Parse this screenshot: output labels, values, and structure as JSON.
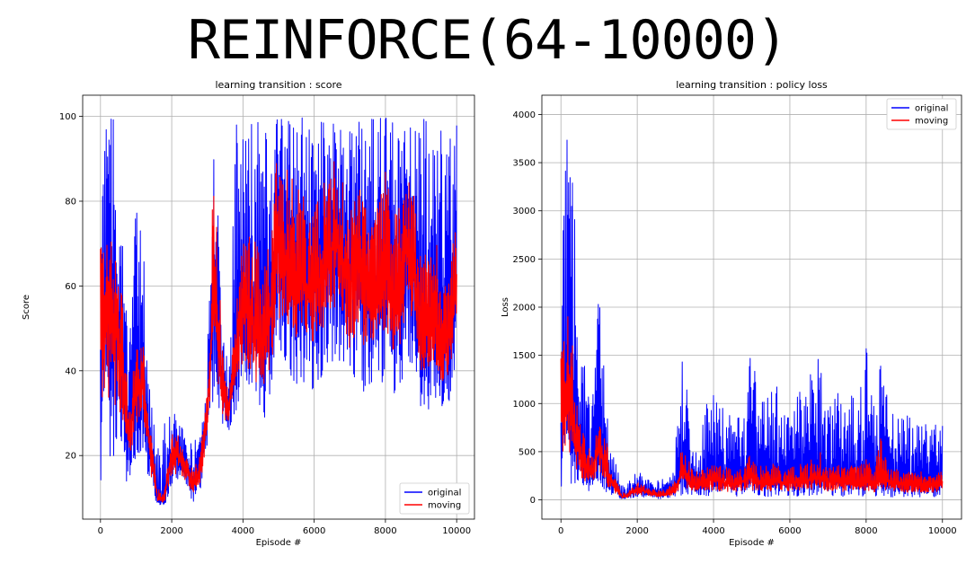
{
  "page": {
    "title": "REINFORCE(64-10000)"
  },
  "colors": {
    "original": "#0000ff",
    "moving": "#ff0000",
    "grid": "#b0b0b0",
    "axis": "#000000"
  },
  "chart_data": [
    {
      "type": "line",
      "title": "learning transition : score",
      "xlabel": "Episode #",
      "ylabel": "Score",
      "xlim": [
        -500,
        10500
      ],
      "ylim": [
        5,
        105
      ],
      "xticks": [
        0,
        2000,
        4000,
        6000,
        8000,
        10000
      ],
      "yticks": [
        20,
        40,
        60,
        80,
        100
      ],
      "grid": true,
      "legend": {
        "position": "bottom-right",
        "entries": [
          "original",
          "moving"
        ]
      },
      "series": [
        {
          "name": "original",
          "x": [
            0,
            200,
            400,
            600,
            800,
            1000,
            1200,
            1400,
            1600,
            1800,
            2000,
            2200,
            2400,
            2600,
            2800,
            3000,
            3200,
            3400,
            3600,
            3800,
            4000,
            4200,
            4400,
            4600,
            4800,
            5000,
            5200,
            5400,
            5600,
            5800,
            6000,
            6200,
            6400,
            6600,
            6800,
            7000,
            7200,
            7400,
            7600,
            7800,
            8000,
            8200,
            8400,
            8600,
            8800,
            9000,
            9200,
            9400,
            9600,
            9800,
            10000
          ],
          "y": [
            45,
            60,
            55,
            40,
            25,
            35,
            38,
            20,
            10,
            9,
            20,
            21,
            17,
            13,
            18,
            30,
            60,
            38,
            30,
            45,
            58,
            55,
            50,
            45,
            55,
            72,
            68,
            63,
            65,
            60,
            60,
            64,
            70,
            72,
            67,
            62,
            68,
            62,
            58,
            62,
            70,
            60,
            62,
            72,
            65,
            50,
            48,
            55,
            42,
            50,
            62
          ],
          "band_low": [
            11,
            22,
            16,
            20,
            10,
            18,
            22,
            12,
            8,
            8,
            12,
            14,
            12,
            9,
            11,
            22,
            35,
            26,
            25,
            30,
            37,
            30,
            26,
            28,
            33,
            40,
            40,
            38,
            36,
            35,
            33,
            38,
            40,
            42,
            40,
            32,
            40,
            34,
            34,
            38,
            36,
            34,
            32,
            45,
            38,
            31,
            30,
            34,
            28,
            33,
            40
          ],
          "band_high": [
            100,
            100,
            100,
            80,
            45,
            82,
            70,
            35,
            22,
            28,
            30,
            30,
            25,
            22,
            28,
            45,
            100,
            60,
            45,
            100,
            100,
            100,
            100,
            100,
            100,
            100,
            100,
            100,
            100,
            100,
            100,
            100,
            100,
            100,
            100,
            100,
            100,
            100,
            100,
            100,
            100,
            100,
            100,
            100,
            100,
            100,
            100,
            100,
            100,
            100,
            100
          ]
        },
        {
          "name": "moving",
          "x": [
            0,
            200,
            400,
            600,
            800,
            1000,
            1200,
            1400,
            1600,
            1800,
            2000,
            2200,
            2400,
            2600,
            2800,
            3000,
            3200,
            3400,
            3600,
            3800,
            4000,
            4200,
            4400,
            4600,
            4800,
            5000,
            5200,
            5400,
            5600,
            5800,
            6000,
            6200,
            6400,
            6600,
            6800,
            7000,
            7200,
            7400,
            7600,
            7800,
            8000,
            8200,
            8400,
            8600,
            8800,
            9000,
            9200,
            9400,
            9600,
            9800,
            10000
          ],
          "y": [
            48,
            58,
            50,
            42,
            24,
            35,
            37,
            21,
            10,
            10,
            20,
            20,
            17,
            13,
            17,
            30,
            58,
            38,
            30,
            45,
            55,
            52,
            48,
            46,
            55,
            70,
            66,
            62,
            63,
            58,
            60,
            62,
            68,
            70,
            66,
            60,
            66,
            60,
            57,
            60,
            68,
            58,
            60,
            70,
            63,
            50,
            48,
            53,
            44,
            50,
            60
          ],
          "band_low": [
            30,
            33,
            30,
            30,
            18,
            27,
            30,
            16,
            9,
            9,
            15,
            16,
            14,
            11,
            13,
            25,
            45,
            30,
            27,
            38,
            42,
            40,
            36,
            36,
            42,
            52,
            52,
            48,
            48,
            46,
            46,
            48,
            52,
            54,
            52,
            45,
            50,
            45,
            44,
            48,
            50,
            45,
            44,
            55,
            48,
            40,
            40,
            42,
            36,
            40,
            48
          ],
          "band_high": [
            70,
            75,
            70,
            60,
            32,
            48,
            46,
            27,
            12,
            12,
            25,
            25,
            20,
            17,
            22,
            36,
            96,
            47,
            34,
            55,
            75,
            72,
            70,
            65,
            75,
            95,
            88,
            85,
            85,
            78,
            80,
            82,
            88,
            90,
            85,
            80,
            85,
            80,
            75,
            80,
            90,
            78,
            80,
            88,
            82,
            70,
            66,
            72,
            60,
            68,
            75
          ]
        }
      ]
    },
    {
      "type": "line",
      "title": "learning transition : policy loss",
      "xlabel": "Episode #",
      "ylabel": "Loss",
      "xlim": [
        -500,
        10500
      ],
      "ylim": [
        -200,
        4200
      ],
      "xticks": [
        0,
        2000,
        4000,
        6000,
        8000,
        10000
      ],
      "yticks": [
        0,
        500,
        1000,
        1500,
        2000,
        2500,
        3000,
        3500,
        4000
      ],
      "grid": true,
      "legend": {
        "position": "top-right",
        "entries": [
          "original",
          "moving"
        ]
      },
      "series": [
        {
          "name": "original",
          "x": [
            0,
            200,
            400,
            600,
            800,
            1000,
            1200,
            1400,
            1600,
            1800,
            2000,
            2200,
            2400,
            2600,
            2800,
            3000,
            3200,
            3400,
            3600,
            3800,
            4000,
            4200,
            4400,
            4600,
            4800,
            5000,
            5200,
            5400,
            5600,
            5800,
            6000,
            6200,
            6400,
            6600,
            6800,
            7000,
            7200,
            7400,
            7600,
            7800,
            8000,
            8200,
            8400,
            8600,
            8800,
            9000,
            9200,
            9400,
            9600,
            9800,
            10000
          ],
          "y": [
            800,
            1200,
            600,
            400,
            300,
            600,
            300,
            150,
            30,
            60,
            120,
            100,
            70,
            60,
            80,
            120,
            350,
            200,
            170,
            250,
            300,
            250,
            230,
            200,
            250,
            280,
            230,
            250,
            260,
            220,
            230,
            240,
            250,
            260,
            280,
            240,
            250,
            230,
            250,
            240,
            260,
            230,
            300,
            230,
            220,
            210,
            200,
            220,
            190,
            210,
            220
          ],
          "band_low": [
            80,
            200,
            120,
            100,
            80,
            150,
            80,
            40,
            0,
            10,
            20,
            20,
            15,
            10,
            15,
            30,
            40,
            30,
            30,
            40,
            40,
            40,
            35,
            30,
            40,
            40,
            30,
            35,
            40,
            30,
            30,
            35,
            35,
            40,
            40,
            30,
            35,
            30,
            35,
            30,
            40,
            30,
            35,
            30,
            30,
            30,
            25,
            30,
            25,
            30,
            30
          ],
          "band_high": [
            3900,
            3950,
            2700,
            1700,
            900,
            2250,
            900,
            450,
            150,
            200,
            300,
            250,
            200,
            200,
            250,
            600,
            1700,
            800,
            600,
            1000,
            1200,
            1000,
            900,
            850,
            1100,
            1600,
            1000,
            1100,
            1300,
            900,
            1000,
            1100,
            1300,
            1400,
            1680,
            1000,
            1200,
            1000,
            1100,
            1000,
            1600,
            1000,
            1650,
            1000,
            900,
            900,
            850,
            900,
            800,
            850,
            800
          ]
        },
        {
          "name": "moving",
          "x": [
            0,
            200,
            400,
            600,
            800,
            1000,
            1200,
            1400,
            1600,
            1800,
            2000,
            2200,
            2400,
            2600,
            2800,
            3000,
            3200,
            3400,
            3600,
            3800,
            4000,
            4200,
            4400,
            4600,
            4800,
            5000,
            5200,
            5400,
            5600,
            5800,
            6000,
            6200,
            6400,
            6600,
            6800,
            7000,
            7200,
            7400,
            7600,
            7800,
            8000,
            8200,
            8400,
            8600,
            8800,
            9000,
            9200,
            9400,
            9600,
            9800,
            10000
          ],
          "y": [
            900,
            1100,
            550,
            380,
            280,
            550,
            280,
            140,
            30,
            60,
            100,
            90,
            60,
            50,
            70,
            100,
            300,
            170,
            140,
            200,
            220,
            180,
            170,
            160,
            200,
            240,
            180,
            200,
            210,
            170,
            180,
            190,
            200,
            210,
            240,
            180,
            200,
            170,
            200,
            180,
            220,
            170,
            260,
            180,
            170,
            160,
            150,
            170,
            140,
            160,
            170
          ],
          "band_low": [
            400,
            500,
            300,
            200,
            150,
            300,
            150,
            80,
            10,
            30,
            50,
            50,
            40,
            30,
            40,
            60,
            150,
            100,
            80,
            100,
            100,
            90,
            80,
            80,
            100,
            100,
            90,
            90,
            100,
            80,
            90,
            90,
            100,
            100,
            110,
            90,
            100,
            80,
            90,
            90,
            100,
            80,
            110,
            80,
            80,
            80,
            70,
            80,
            70,
            80,
            80
          ],
          "band_high": [
            1500,
            2300,
            1100,
            700,
            500,
            850,
            600,
            250,
            70,
            100,
            180,
            150,
            120,
            100,
            140,
            220,
            600,
            350,
            300,
            350,
            400,
            350,
            330,
            300,
            350,
            500,
            350,
            350,
            400,
            300,
            350,
            350,
            400,
            420,
            500,
            350,
            380,
            330,
            370,
            350,
            450,
            330,
            700,
            330,
            320,
            300,
            280,
            300,
            260,
            280,
            300
          ]
        }
      ]
    }
  ]
}
